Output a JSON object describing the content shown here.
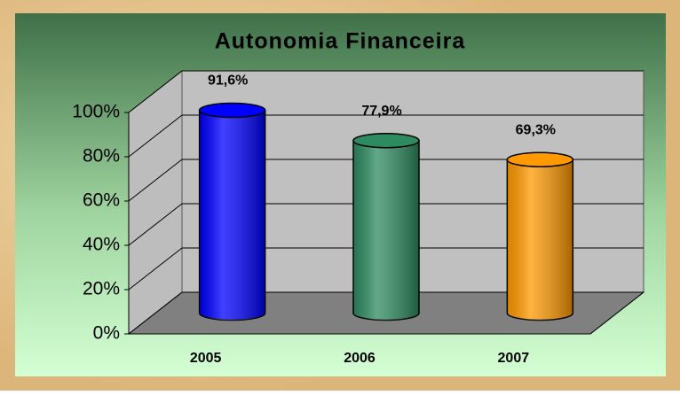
{
  "chart_data": {
    "type": "bar3d",
    "title": "Autonomia Financeira",
    "categories": [
      "2005",
      "2006",
      "2007"
    ],
    "values": [
      91.6,
      77.9,
      69.3
    ],
    "value_labels": [
      "91,6%",
      "77,9%",
      "69,3%"
    ],
    "colors": [
      "#0000ff",
      "#2e8b60",
      "#ff9900"
    ],
    "ylim": [
      0,
      100
    ],
    "yticks": [
      {
        "value": 0,
        "label": "0%"
      },
      {
        "value": 20,
        "label": "20%"
      },
      {
        "value": 40,
        "label": "40%"
      },
      {
        "value": 60,
        "label": "60%"
      },
      {
        "value": 80,
        "label": "80%"
      },
      {
        "value": 100,
        "label": "100%"
      }
    ],
    "grid": true
  }
}
